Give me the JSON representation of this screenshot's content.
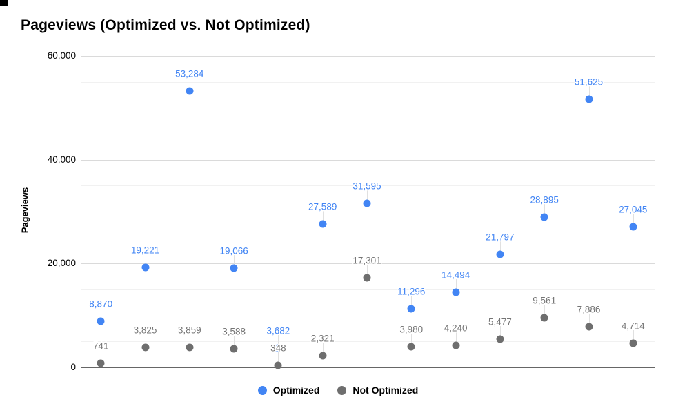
{
  "chart_data": {
    "type": "scatter",
    "title": "Pageviews (Optimized vs. Not Optimized)",
    "xlabel": "",
    "ylabel": "Pageviews",
    "ylim": [
      0,
      60000
    ],
    "yticks": [
      0,
      20000,
      40000,
      60000
    ],
    "ytick_labels": [
      "0",
      "20,000",
      "40,000",
      "60,000"
    ],
    "minor_grid_step": 5000,
    "grid": true,
    "legend_position": "bottom",
    "point_count": 13,
    "series": [
      {
        "name": "Optimized",
        "dot_color": "#4285f4",
        "label_color": "#4285f4",
        "values": [
          8870,
          19221,
          53284,
          19066,
          3682,
          27589,
          31595,
          11296,
          14494,
          21797,
          28895,
          51625,
          27045
        ],
        "value_labels": [
          "8,870",
          "19,221",
          "53,284",
          "19,066",
          "3,682",
          "27,589",
          "31,595",
          "11,296",
          "14,494",
          "21,797",
          "28,895",
          "51,625",
          "27,045"
        ]
      },
      {
        "name": "Not Optimized",
        "dot_color": "#6e6e6e",
        "label_color": "#757575",
        "values": [
          741,
          3825,
          3859,
          3588,
          348,
          2321,
          17301,
          3980,
          4240,
          5477,
          9561,
          7886,
          4714
        ],
        "value_labels": [
          "741",
          "3,825",
          "3,859",
          "3,588",
          "348",
          "2,321",
          "17,301",
          "3,980",
          "4,240",
          "5,477",
          "9,561",
          "7,886",
          "4,714"
        ]
      }
    ],
    "colors": {
      "grid_major": "#dadada",
      "grid_minor": "#f1f1f1",
      "axis_line": "#666666",
      "tick_text": "#000000"
    }
  }
}
